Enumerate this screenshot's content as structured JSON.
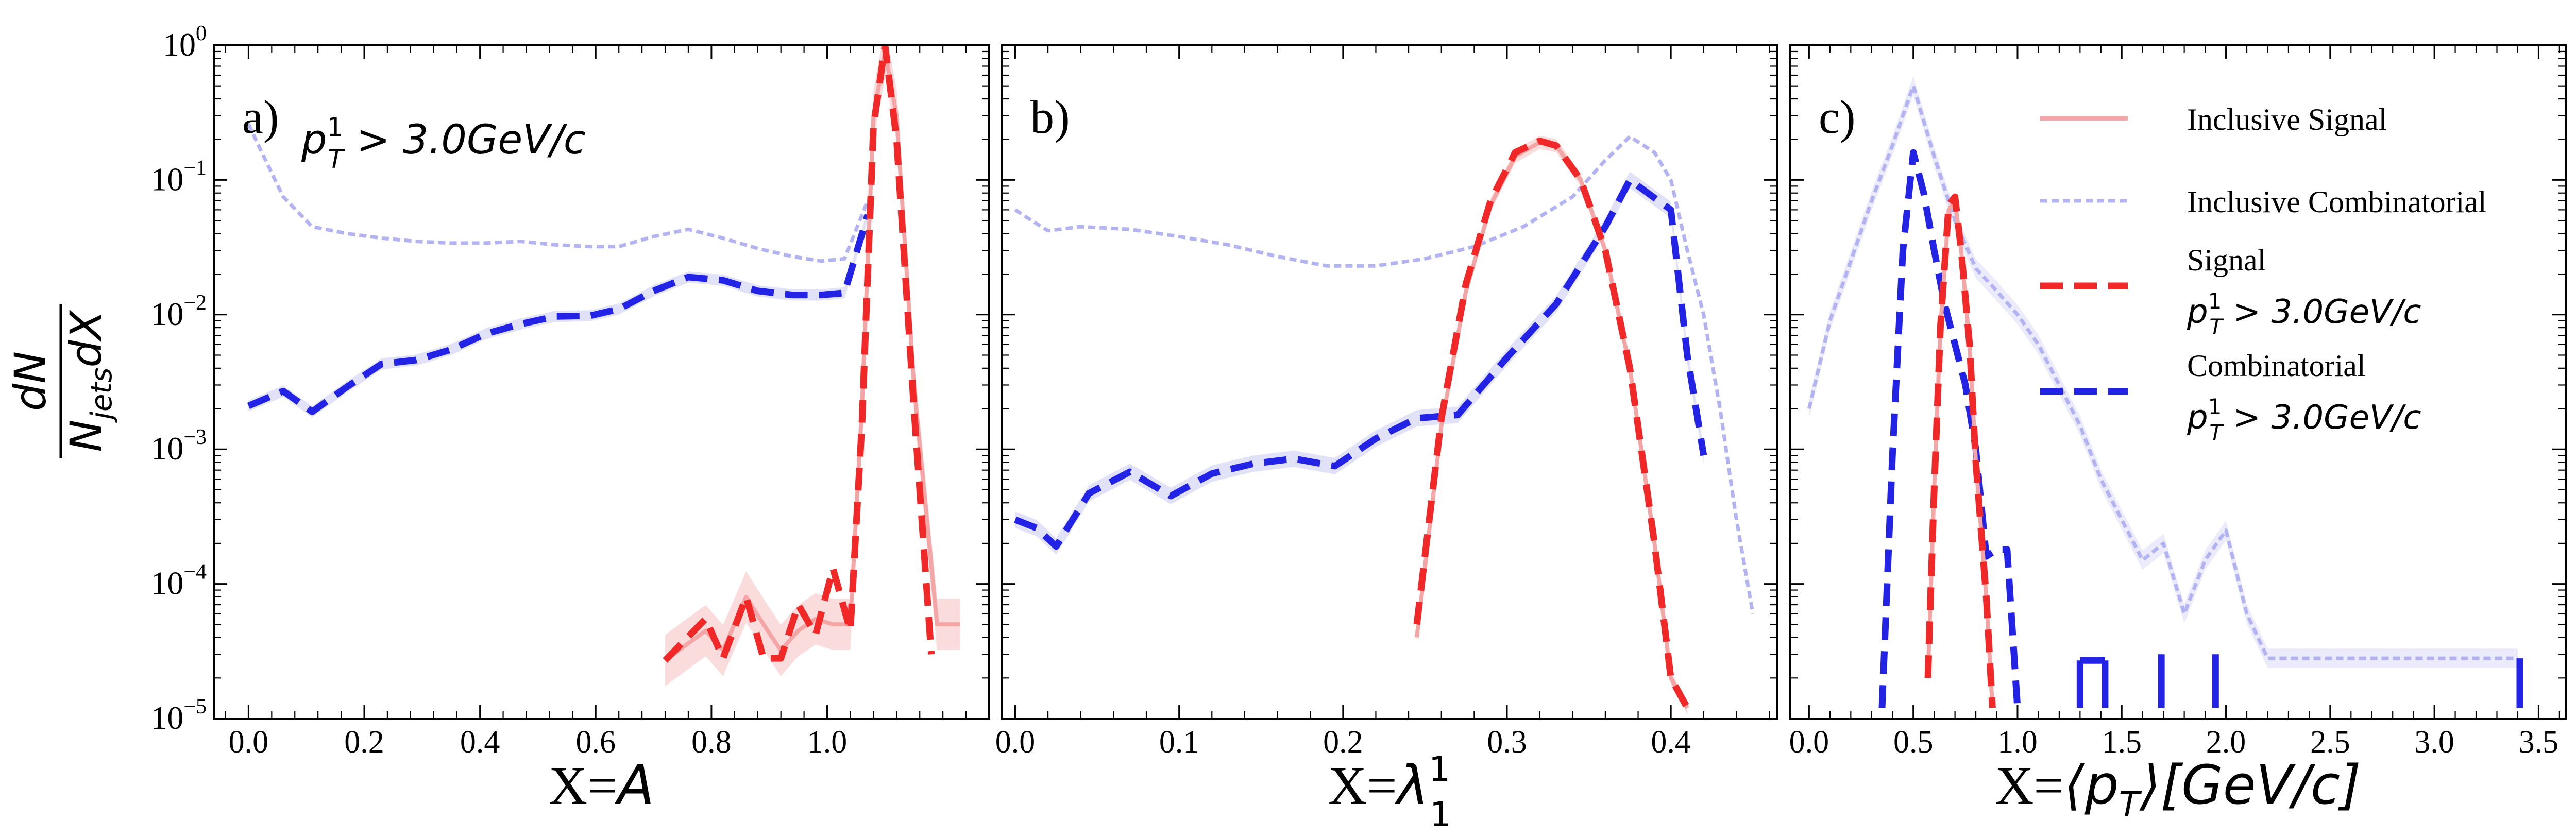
{
  "chart_data": {
    "type": "line",
    "y_scale": "log",
    "ylim": [
      1e-05,
      1
    ],
    "y_ticks": [
      {
        "value": 1,
        "base": "10",
        "exp": "0"
      },
      {
        "value": 0.1,
        "base": "10",
        "exp": "−1"
      },
      {
        "value": 0.01,
        "base": "10",
        "exp": "−2"
      },
      {
        "value": 0.001,
        "base": "10",
        "exp": "−3"
      },
      {
        "value": 0.0001,
        "base": "10",
        "exp": "−4"
      },
      {
        "value": 1e-05,
        "base": "10",
        "exp": "−5"
      }
    ],
    "ylabel": {
      "numerator": "dN",
      "denominator": "N",
      "denominator_sub": "jets",
      "denominator_tail": "dX"
    },
    "legend": {
      "position": "upper-right of panel c",
      "entries": [
        {
          "key": "inclusive_signal",
          "label": [
            "Inclusive Signal"
          ]
        },
        {
          "key": "inclusive_combinatorial",
          "label": [
            "Inclusive Combinatorial"
          ]
        },
        {
          "key": "signal_cut",
          "label": [
            "Signal",
            "p_T^1 > 3.0 GeV/c"
          ]
        },
        {
          "key": "comb_cut",
          "label": [
            "Combinatorial",
            "p_T^1 > 3.0 GeV/c"
          ]
        }
      ],
      "cut_label": {
        "main": "p",
        "sub": "T",
        "sup": "1",
        "tail": " > 3.0GeV/c"
      }
    },
    "styles": {
      "inclusive_signal": {
        "color": "#f4a6a6",
        "band": "#f8c0c0",
        "dash": "none",
        "width": 8
      },
      "inclusive_combinatorial": {
        "color": "#b3b3f2",
        "band": "#dadaf8",
        "dash": "14 8",
        "width": 7
      },
      "signal_cut": {
        "color": "#f02828",
        "band": "#f7b3b3",
        "dash": "44 22",
        "width": 13
      },
      "comb_cut": {
        "color": "#2323e6",
        "band": "#c8c8f2",
        "dash": "44 22",
        "width": 13
      }
    },
    "panels": [
      {
        "id": "a",
        "label": "a)",
        "show_cut_label": true,
        "xlim": [
          -0.06,
          1.28
        ],
        "x_ticks": [
          0.0,
          0.2,
          0.4,
          0.6,
          0.8,
          1.0
        ],
        "x_tick_labels": [
          "0.0",
          "0.2",
          "0.4",
          "0.6",
          "0.8",
          "1.0"
        ],
        "xlabel": {
          "prefix": "X=",
          "symbol": "A",
          "sub": "",
          "sup": ""
        },
        "series": {
          "inclusive_combinatorial": {
            "x": [
              0.0,
              0.02,
              0.06,
              0.11,
              0.17,
              0.23,
              0.29,
              0.35,
              0.41,
              0.47,
              0.53,
              0.59,
              0.64,
              0.7,
              0.76,
              0.82,
              0.88,
              0.94,
              0.99,
              1.03,
              1.07
            ],
            "y": [
              0.26,
              0.17,
              0.075,
              0.045,
              0.04,
              0.037,
              0.035,
              0.034,
              0.034,
              0.035,
              0.033,
              0.032,
              0.032,
              0.038,
              0.043,
              0.037,
              0.031,
              0.027,
              0.025,
              0.026,
              0.07
            ]
          },
          "comb_cut": {
            "x": [
              0.0,
              0.06,
              0.11,
              0.17,
              0.23,
              0.29,
              0.35,
              0.41,
              0.47,
              0.53,
              0.59,
              0.64,
              0.7,
              0.76,
              0.82,
              0.88,
              0.94,
              0.99,
              1.03,
              1.07
            ],
            "y": [
              0.0021,
              0.0027,
              0.0019,
              0.0029,
              0.0043,
              0.0046,
              0.0055,
              0.0072,
              0.0085,
              0.0097,
              0.0098,
              0.011,
              0.015,
              0.019,
              0.018,
              0.015,
              0.014,
              0.014,
              0.0145,
              0.055
            ],
            "band": 0.1
          },
          "inclusive_signal": {
            "x": [
              0.72,
              0.79,
              0.82,
              0.86,
              0.89,
              0.92,
              0.95,
              0.98,
              1.01,
              1.04,
              1.06,
              1.08,
              1.1,
              1.12,
              1.15,
              1.19,
              1.23
            ],
            "y": [
              2.7e-05,
              4.5e-05,
              3.2e-05,
              8e-05,
              5e-05,
              3.2e-05,
              4.5e-05,
              5.5e-05,
              5e-05,
              5e-05,
              0.002,
              0.3,
              0.9,
              0.3,
              0.003,
              5e-05,
              5e-05
            ],
            "band": 0.55
          },
          "signal_cut": {
            "x": [
              0.72,
              0.79,
              0.82,
              0.86,
              0.89,
              0.92,
              0.95,
              0.98,
              1.01,
              1.04,
              1.06,
              1.08,
              1.1,
              1.12,
              1.15,
              1.18
            ],
            "y": [
              2.7e-05,
              5.5e-05,
              2.8e-05,
              8e-05,
              2.8e-05,
              2.8e-05,
              7e-05,
              4.2e-05,
              0.00013,
              4.5e-05,
              0.0015,
              0.25,
              1.0,
              0.2,
              0.002,
              3e-05
            ]
          }
        }
      },
      {
        "id": "b",
        "label": "b)",
        "show_cut_label": false,
        "xlim": [
          -0.008,
          0.465
        ],
        "x_ticks": [
          0.0,
          0.1,
          0.2,
          0.3,
          0.4
        ],
        "x_tick_labels": [
          "0.0",
          "0.1",
          "0.2",
          "0.3",
          "0.4"
        ],
        "xlabel": {
          "prefix": "X=",
          "symbol": "λ",
          "sub": "1",
          "sup": "1"
        },
        "series": {
          "inclusive_combinatorial": {
            "x": [
              0.0,
              0.01,
              0.02,
              0.04,
              0.07,
              0.1,
              0.13,
              0.16,
              0.19,
              0.22,
              0.25,
              0.28,
              0.31,
              0.34,
              0.36,
              0.375,
              0.39,
              0.4,
              0.41,
              0.42,
              0.43,
              0.44,
              0.45
            ],
            "y": [
              0.06,
              0.05,
              0.042,
              0.045,
              0.043,
              0.038,
              0.033,
              0.027,
              0.023,
              0.023,
              0.026,
              0.032,
              0.045,
              0.075,
              0.14,
              0.21,
              0.16,
              0.1,
              0.03,
              0.01,
              0.002,
              0.0003,
              6e-05
            ]
          },
          "comb_cut": {
            "x": [
              0.0,
              0.013,
              0.025,
              0.045,
              0.07,
              0.095,
              0.12,
              0.145,
              0.17,
              0.195,
              0.22,
              0.245,
              0.27,
              0.3,
              0.33,
              0.36,
              0.375,
              0.4,
              0.41,
              0.42
            ],
            "y": [
              0.0003,
              0.00026,
              0.00019,
              0.00047,
              0.00068,
              0.00045,
              0.00066,
              0.00078,
              0.00085,
              0.00075,
              0.0012,
              0.0017,
              0.0018,
              0.0048,
              0.012,
              0.045,
              0.1,
              0.06,
              0.005,
              0.0009
            ],
            "band": 0.15
          },
          "inclusive_signal": {
            "x": [
              0.245,
              0.26,
              0.275,
              0.29,
              0.305,
              0.32,
              0.33,
              0.345,
              0.36,
              0.375,
              0.39,
              0.4,
              0.41
            ],
            "y": [
              4e-05,
              0.0015,
              0.015,
              0.065,
              0.15,
              0.19,
              0.18,
              0.1,
              0.03,
              0.004,
              0.0002,
              2e-05,
              1.2e-05
            ],
            "band": 0.12
          },
          "signal_cut": {
            "x": [
              0.245,
              0.26,
              0.275,
              0.29,
              0.305,
              0.32,
              0.33,
              0.345,
              0.36,
              0.375,
              0.39,
              0.4,
              0.41
            ],
            "y": [
              5e-05,
              0.0017,
              0.017,
              0.07,
              0.16,
              0.195,
              0.18,
              0.1,
              0.03,
              0.004,
              0.0002,
              2e-05,
              1.2e-05
            ]
          }
        }
      },
      {
        "id": "c",
        "label": "c)",
        "show_cut_label": false,
        "xlim": [
          -0.09,
          3.63
        ],
        "x_ticks": [
          0.0,
          0.5,
          1.0,
          1.5,
          2.0,
          2.5,
          3.0,
          3.5
        ],
        "x_tick_labels": [
          "0.0",
          "0.5",
          "1.0",
          "1.5",
          "2.0",
          "2.5",
          "3.0",
          "3.5"
        ],
        "xlabel": {
          "prefix": "X=",
          "symbol": "⟨p",
          "sub": "T",
          "sup": "",
          "tail": "⟩[GeV/c]"
        },
        "series": {
          "inclusive_combinatorial": {
            "x": [
              0.0,
              0.1,
              0.2,
              0.3,
              0.4,
              0.5,
              0.6,
              0.7,
              0.8,
              0.9,
              1.0,
              1.1,
              1.2,
              1.3,
              1.4,
              1.5,
              1.6,
              1.7,
              1.8,
              1.9,
              2.0,
              2.1,
              2.2,
              2.5,
              3.0,
              3.4
            ],
            "y": [
              0.002,
              0.009,
              0.025,
              0.07,
              0.18,
              0.5,
              0.15,
              0.05,
              0.022,
              0.015,
              0.01,
              0.006,
              0.003,
              0.0015,
              0.0006,
              0.0003,
              0.00015,
              0.0002,
              6e-05,
              0.00015,
              0.00025,
              6e-05,
              2.8e-05,
              2.8e-05,
              2.8e-05,
              2.8e-05
            ],
            "band": 0.18
          },
          "comb_cut": {
            "x": [
              0.35,
              0.4,
              0.45,
              0.5,
              0.55,
              0.6,
              0.65,
              0.7,
              0.75,
              0.8,
              0.85,
              0.9,
              0.95,
              1.0
            ],
            "y": [
              1.2e-05,
              0.0009,
              0.03,
              0.16,
              0.08,
              0.03,
              0.012,
              0.006,
              0.003,
              0.001,
              0.00016,
              0.00018,
              0.00018,
              1.2e-05
            ]
          },
          "comb_cut_segments": [
            {
              "x": [
                1.3,
                1.42
              ],
              "y": [
                2.7e-05,
                2.7e-05
              ]
            },
            {
              "x": [
                1.3,
                1.3
              ],
              "y": [
                1.2e-05,
                2.7e-05
              ]
            },
            {
              "x": [
                1.42,
                1.42
              ],
              "y": [
                1.2e-05,
                2.7e-05
              ]
            },
            {
              "x": [
                1.69,
                1.69
              ],
              "y": [
                1.2e-05,
                3e-05
              ]
            },
            {
              "x": [
                1.95,
                1.95
              ],
              "y": [
                1.2e-05,
                3e-05
              ]
            },
            {
              "x": [
                3.41,
                3.41
              ],
              "y": [
                1.2e-05,
                2.8e-05
              ]
            }
          ],
          "inclusive_signal": {
            "x": [
              0.57,
              0.6,
              0.63,
              0.67,
              0.7,
              0.73,
              0.77,
              0.8,
              0.85,
              0.88
            ],
            "y": [
              2e-05,
              0.0005,
              0.008,
              0.06,
              0.07,
              0.03,
              0.006,
              0.0008,
              8e-05,
              1.2e-05
            ],
            "band": 0.12
          },
          "signal_cut": {
            "x": [
              0.57,
              0.6,
              0.63,
              0.67,
              0.7,
              0.73,
              0.77,
              0.8,
              0.85,
              0.88
            ],
            "y": [
              2e-05,
              0.0005,
              0.008,
              0.065,
              0.075,
              0.03,
              0.006,
              0.0008,
              8e-05,
              1.2e-05
            ]
          }
        }
      }
    ]
  }
}
